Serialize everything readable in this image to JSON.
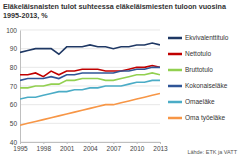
{
  "chart_data": {
    "type": "line",
    "title": "Eläkeläisnaisten tulot suhteessa eläkeläismiesten tuloon vuosina 1995-2013, %",
    "source": "Lähde: ETK ja VATT",
    "x": [
      1995,
      1996,
      1997,
      1998,
      1999,
      2000,
      2001,
      2002,
      2003,
      2004,
      2005,
      2006,
      2007,
      2008,
      2009,
      2010,
      2011,
      2012,
      2013
    ],
    "xlim": [
      1995,
      2013
    ],
    "xticks": [
      1995,
      1998,
      2001,
      2004,
      2007,
      2010,
      2013
    ],
    "ylim": [
      40,
      100
    ],
    "yticks": [
      40,
      50,
      60,
      70,
      80,
      90,
      100
    ],
    "grid": true,
    "legend": "right",
    "series": [
      {
        "name": "Ekvivalenttitulo",
        "color": "#1f3864",
        "values": [
          88,
          89,
          90,
          90,
          90,
          87,
          91,
          91,
          91,
          92,
          91,
          91,
          90,
          91,
          91,
          92,
          92,
          93,
          92
        ]
      },
      {
        "name": "Nettotulo",
        "color": "#c00000",
        "values": [
          76,
          76,
          77,
          75,
          78,
          76,
          78,
          78,
          79,
          79,
          79,
          78,
          78,
          78,
          79,
          80,
          80,
          81,
          80
        ]
      },
      {
        "name": "Bruttotulo",
        "color": "#92d050",
        "values": [
          69,
          69,
          70,
          70,
          71,
          71,
          73,
          73,
          74,
          74,
          74,
          73,
          73,
          74,
          75,
          76,
          76,
          77,
          76
        ]
      },
      {
        "name": "Kokonaiseläke",
        "color": "#2f5597",
        "values": [
          73,
          74,
          74,
          74,
          75,
          74,
          76,
          76,
          77,
          77,
          77,
          77,
          77,
          78,
          78,
          79,
          79,
          80,
          80
        ]
      },
      {
        "name": "Omaeläke",
        "color": "#4bacc6",
        "values": [
          63,
          64,
          64,
          65,
          66,
          67,
          67,
          68,
          68,
          69,
          69,
          70,
          70,
          70,
          71,
          72,
          72,
          73,
          73
        ]
      },
      {
        "name": "Oma työeläke",
        "color": "#f79646",
        "values": [
          49,
          50,
          51,
          52,
          53,
          54,
          55,
          56,
          57,
          58,
          59,
          60,
          60,
          61,
          62,
          63,
          64,
          65,
          66
        ]
      }
    ]
  }
}
